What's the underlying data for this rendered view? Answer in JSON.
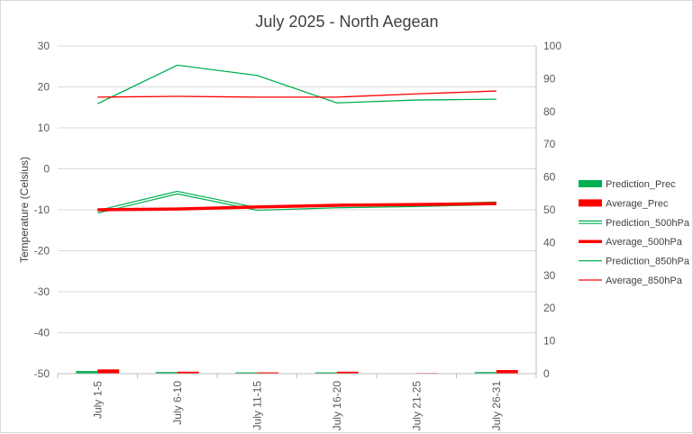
{
  "chart_data": {
    "type": "line",
    "title": "July 2025 - North Aegean",
    "ylabel": "Temperature (Celsius)",
    "xlabel": "",
    "categories": [
      "July 1-5",
      "July 6-10",
      "July 11-15",
      "July 16-20",
      "July 21-25",
      "July 26-31"
    ],
    "ylim": [
      -50,
      30
    ],
    "yticks": [
      30,
      20,
      10,
      0,
      -10,
      -20,
      -30,
      -40,
      -50
    ],
    "y2lim": [
      0,
      100
    ],
    "y2ticks": [
      100,
      90,
      80,
      70,
      60,
      50,
      40,
      30,
      20,
      10,
      0
    ],
    "grid": true,
    "legend_position": "right",
    "bar_series": [
      {
        "name": "Prediction_Prec",
        "axis": "right",
        "color": "#00b050",
        "values": [
          0.8,
          0.5,
          0.4,
          0.4,
          0.1,
          0.5
        ]
      },
      {
        "name": "Average_Prec",
        "axis": "right",
        "color": "#ff0000",
        "values": [
          1.3,
          0.6,
          0.4,
          0.6,
          0.2,
          1.1
        ]
      }
    ],
    "line_series": [
      {
        "name": "Prediction_500hPa",
        "axis": "left",
        "color": "#00b050",
        "style": "double",
        "values": [
          -10.5,
          -5.8,
          -9.8,
          -9.2,
          -8.9,
          -8.4
        ]
      },
      {
        "name": "Average_500hPa",
        "axis": "left",
        "color": "#ff0000",
        "style": "thick",
        "values": [
          -10.0,
          -9.8,
          -9.3,
          -8.9,
          -8.7,
          -8.5
        ]
      },
      {
        "name": "Prediction_850hPa",
        "axis": "left",
        "color": "#00b050",
        "style": "thin",
        "values": [
          15.9,
          25.3,
          22.8,
          16.1,
          16.8,
          17.0
        ]
      },
      {
        "name": "Average_850hPa",
        "axis": "left",
        "color": "#ff0000",
        "style": "thin",
        "values": [
          17.5,
          17.7,
          17.5,
          17.5,
          18.3,
          19.0
        ]
      }
    ]
  }
}
